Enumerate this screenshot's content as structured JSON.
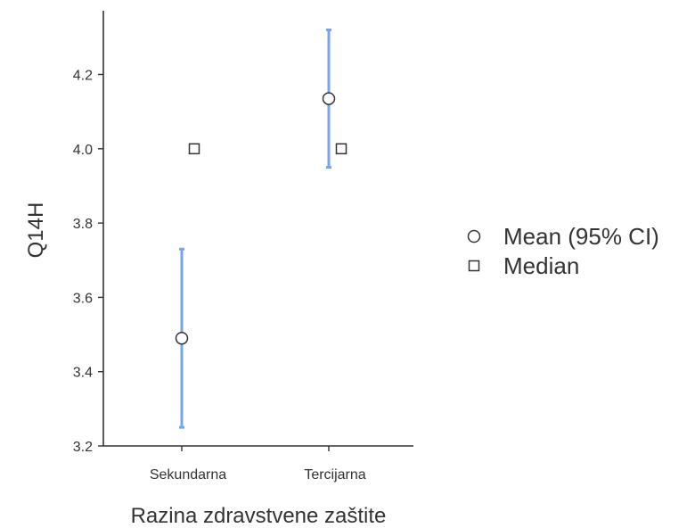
{
  "chart_data": {
    "type": "scatter",
    "categories": [
      "Sekundarna",
      "Tercijarna"
    ],
    "series": [
      {
        "name": "Mean (95% CI)",
        "values": [
          3.49,
          4.135
        ],
        "ci_lower": [
          3.25,
          3.95
        ],
        "ci_upper": [
          3.73,
          4.32
        ]
      },
      {
        "name": "Median",
        "values": [
          4.0,
          4.0
        ]
      }
    ],
    "xlabel": "Razina zdravstvene zaštite",
    "ylabel": "Q14H",
    "ylim": [
      3.2,
      4.35
    ],
    "yticks": [
      "3.2",
      "3.4",
      "3.6",
      "3.8",
      "4.0",
      "4.2"
    ],
    "grid": false,
    "legend_position": "right",
    "colors": {
      "ci": "#7ba3ea",
      "axis": "#333333",
      "marker_fill": "#ffffff"
    }
  }
}
